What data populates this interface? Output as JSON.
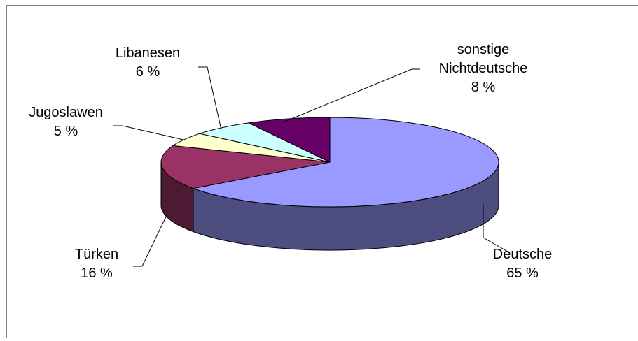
{
  "chart_data": {
    "type": "pie",
    "style": "3d",
    "categories": [
      "Deutsche",
      "Türken",
      "Jugoslawen",
      "Libanesen",
      "sonstige Nichtdeutsche"
    ],
    "values": [
      65,
      16,
      5,
      6,
      8
    ],
    "value_labels": [
      "65 %",
      "16 %",
      "5 %",
      "6 %",
      "8 %"
    ],
    "colors": {
      "Deutsche": "#9999FF",
      "Türken": "#993366",
      "Jugoslawen": "#FFFFCC",
      "Libanesen": "#CCFFFF",
      "sonstige Nichtdeutsche": "#660066"
    },
    "legend": "none",
    "labels": [
      {
        "lines": [
          "Deutsche",
          "65 %"
        ]
      },
      {
        "lines": [
          "Türken",
          "16 %"
        ]
      },
      {
        "lines": [
          "Jugoslawen",
          "5 %"
        ]
      },
      {
        "lines": [
          "Libanesen",
          "6 %"
        ]
      },
      {
        "lines": [
          "sonstige",
          "Nichtdeutsche",
          "8 %"
        ]
      }
    ]
  }
}
